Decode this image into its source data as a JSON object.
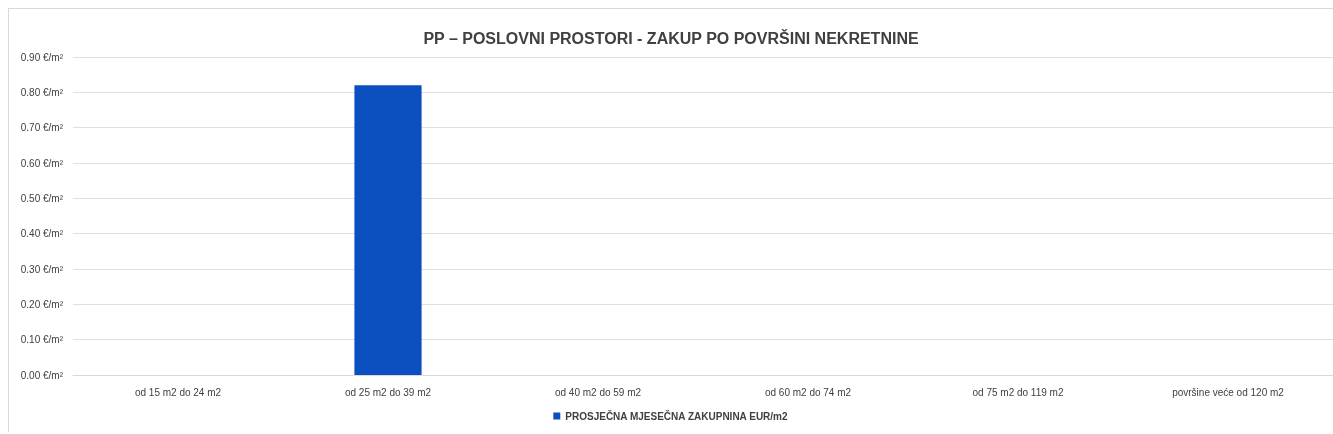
{
  "chart_data": {
    "type": "bar",
    "title": "PP – POSLOVNI PROSTORI - ZAKUP PO POVRŠINI NEKRETNINE",
    "categories": [
      "od 15 m2 do 24 m2",
      "od 25 m2 do 39 m2",
      "od 40 m2 do 59 m2",
      "od 60 m2 do 74 m2",
      "od 75 m2 do 119 m2",
      "površine veće od 120 m2"
    ],
    "series": [
      {
        "name": "PROSJEČNA MJESEČNA ZAKUPNINA EUR/m2",
        "color": "#0c4fc1",
        "values": [
          null,
          0.82,
          null,
          null,
          null,
          null
        ]
      }
    ],
    "ylim": [
      0,
      0.9
    ],
    "yticks": [
      {
        "value": 0,
        "label": "0.00 €/m²"
      },
      {
        "value": 0.1,
        "label": "0.10 €/m²"
      },
      {
        "value": 0.2,
        "label": "0.20 €/m²"
      },
      {
        "value": 0.3,
        "label": "0.30 €/m²"
      },
      {
        "value": 0.4,
        "label": "0.40 €/m²"
      },
      {
        "value": 0.5,
        "label": "0.50 €/m²"
      },
      {
        "value": 0.6,
        "label": "0.60 €/m²"
      },
      {
        "value": 0.7,
        "label": "0.70 €/m²"
      },
      {
        "value": 0.8,
        "label": "0.80 €/m²"
      },
      {
        "value": 0.9,
        "label": "0.90 €/m²"
      }
    ],
    "grid": "y",
    "legend": "bottom"
  }
}
